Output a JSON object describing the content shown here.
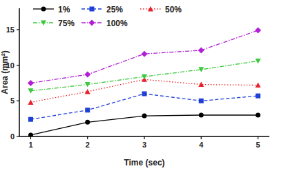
{
  "chart_data": {
    "type": "line",
    "x_label": "Time (sec)",
    "y_label": "Area (mm²)",
    "x": [
      1,
      2,
      3,
      4,
      5
    ],
    "xlim": [
      0.8,
      5.2
    ],
    "xticks": [
      1,
      2,
      3,
      4,
      5
    ],
    "ylim": [
      0,
      18
    ],
    "yticks": [
      0,
      5,
      10,
      15
    ],
    "grid": false,
    "legend": "upper left",
    "series": [
      {
        "name": "1%",
        "color": "#000000",
        "marker": "circle",
        "line_style": "solid",
        "values": [
          0.2,
          2.0,
          2.9,
          3.0,
          3.0
        ]
      },
      {
        "name": "25%",
        "color": "#1f3fd6",
        "marker": "square",
        "line_style": "dashed",
        "values": [
          2.4,
          3.7,
          6.0,
          5.0,
          5.7
        ]
      },
      {
        "name": "50%",
        "color": "#e8212a",
        "marker": "triangle",
        "line_style": "dotted",
        "values": [
          4.8,
          6.3,
          8.0,
          7.3,
          7.2
        ]
      },
      {
        "name": "75%",
        "color": "#3cc83c",
        "marker": "triangle-down",
        "line_style": "dashdot",
        "values": [
          6.4,
          7.3,
          8.4,
          9.4,
          10.6
        ]
      },
      {
        "name": "100%",
        "color": "#b21fd6",
        "marker": "diamond",
        "line_style": "dashdot",
        "values": [
          7.5,
          8.7,
          11.6,
          12.1,
          14.9
        ]
      }
    ]
  }
}
